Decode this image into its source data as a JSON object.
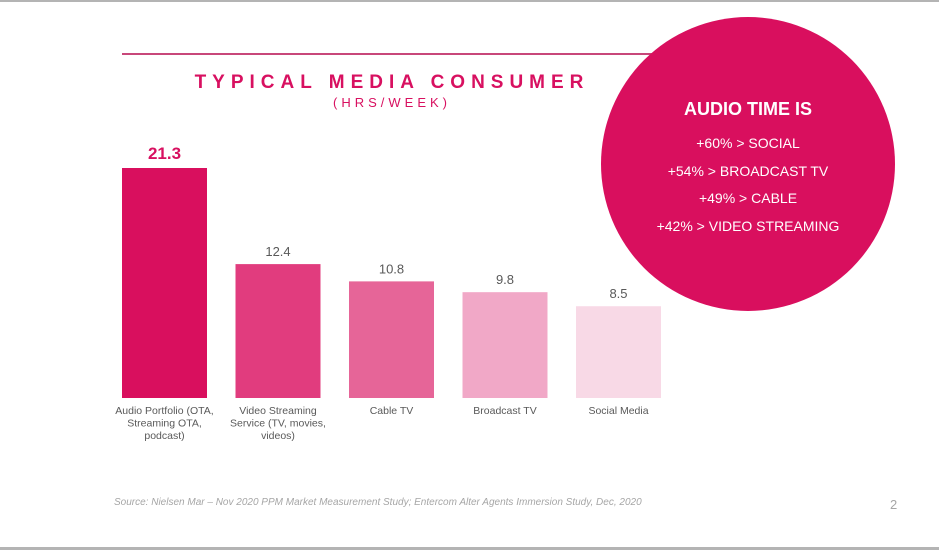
{
  "chart_data": {
    "type": "bar",
    "title": "TYPICAL MEDIA CONSUMER",
    "subtitle": "(HRS/WEEK)",
    "xlabel": "",
    "ylabel": "",
    "ylim": [
      0,
      21.3
    ],
    "grid": false,
    "categories": [
      "Audio Portfolio (OTA, Streaming OTA, podcast)",
      "Video Streaming Service (TV, movies, videos)",
      "Cable TV",
      "Broadcast TV",
      "Social Media"
    ],
    "category_lines": [
      [
        "Audio Portfolio (OTA,",
        "Streaming OTA,",
        "podcast)"
      ],
      [
        "Video Streaming",
        "Service (TV, movies,",
        "videos)"
      ],
      [
        "Cable TV"
      ],
      [
        "Broadcast TV"
      ],
      [
        "Social Media"
      ]
    ],
    "values": [
      21.3,
      12.4,
      10.8,
      9.8,
      8.5
    ],
    "value_labels": [
      "21.3",
      "12.4",
      "10.8",
      "9.8",
      "8.5"
    ],
    "colors": [
      "#d90f5e",
      "#e13c7e",
      "#e66598",
      "#f1a8c7",
      "#f8d9e6"
    ]
  },
  "callout": {
    "heading": "AUDIO TIME IS",
    "lines": [
      "+60% > SOCIAL",
      "+54% > BROADCAST TV",
      "+49% > CABLE",
      "+42% > VIDEO STREAMING"
    ],
    "color": "#d90f5e"
  },
  "footer": {
    "source": "Source: Nielsen Mar – Nov 2020 PPM Market Measurement Study; Entercom Alter Agents Immersion Study, Dec, 2020",
    "page_number": "2"
  },
  "accent_color": "#d81060"
}
